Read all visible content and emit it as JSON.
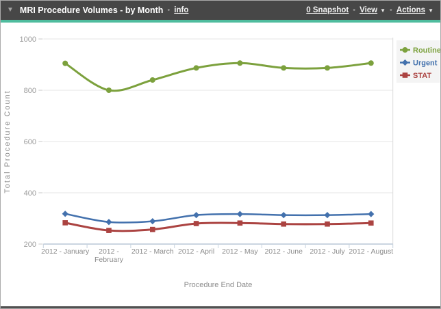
{
  "header": {
    "collapse_icon": "▼",
    "title": "MRI Procedure Volumes - by Month",
    "separator": "•",
    "info_label": "info",
    "snapshot_label": "0 Snapshot",
    "view_label": "View",
    "actions_label": "Actions",
    "dropdown_icon": "▼"
  },
  "colors": {
    "header_bg": "#474747",
    "accent": "#4fbc9e",
    "grid": "#e4e4e4",
    "axis_text": "#9a9a9a",
    "label_text": "#8b8b8b",
    "xaxis_line": "#b9c7d5",
    "xaxis_tick": "#c6d2de",
    "right_border": "#dcdcdc",
    "legend_bg": "#f4f4f4",
    "routine": "#7ca13d",
    "urgent": "#4371ad",
    "stat": "#ab4341"
  },
  "chart_data": {
    "type": "line",
    "title": "MRI Procedure Volumes - by Month",
    "xlabel": "Procedure End Date",
    "ylabel": "Total Procedure Count",
    "categories": [
      "2012 - January",
      "2012 - February",
      "2012 - March",
      "2012 - April",
      "2012 - May",
      "2012 - June",
      "2012 - July",
      "2012 - August"
    ],
    "series": [
      {
        "name": "Routine",
        "marker": "circle",
        "color": "#7ca13d",
        "values": [
          905,
          800,
          840,
          887,
          906,
          887,
          887,
          906
        ]
      },
      {
        "name": "Urgent",
        "marker": "diamond",
        "color": "#4371ad",
        "values": [
          318,
          286,
          289,
          313,
          317,
          313,
          313,
          317
        ]
      },
      {
        "name": "STAT",
        "marker": "square",
        "color": "#ab4341",
        "values": [
          283,
          253,
          257,
          280,
          282,
          278,
          278,
          282
        ]
      }
    ],
    "ylim": [
      200,
      1000
    ],
    "yticks": [
      200,
      400,
      600,
      800,
      1000
    ],
    "grid": true,
    "legend_position": "top-right"
  }
}
